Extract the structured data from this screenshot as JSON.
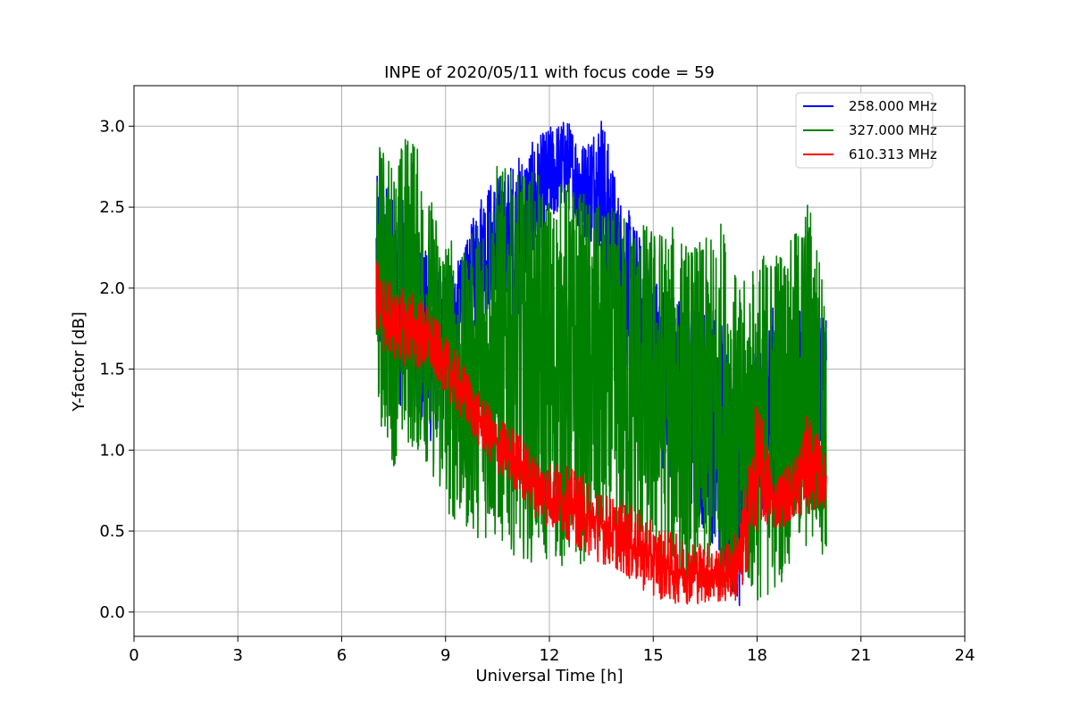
{
  "chart_data": {
    "type": "line",
    "title": "INPE of 2020/05/11 with focus code = 59",
    "xlabel": "Universal Time [h]",
    "ylabel": "Y-factor [dB]",
    "xlim": [
      0,
      24
    ],
    "ylim": [
      -0.15,
      3.25
    ],
    "xticks": [
      0,
      3,
      6,
      9,
      12,
      15,
      18,
      21,
      24
    ],
    "xtick_labels": [
      "0",
      "3",
      "6",
      "9",
      "12",
      "15",
      "18",
      "21",
      "24"
    ],
    "yticks": [
      0.0,
      0.5,
      1.0,
      1.5,
      2.0,
      2.5,
      3.0
    ],
    "ytick_labels": [
      "0.0",
      "0.5",
      "1.0",
      "1.5",
      "2.0",
      "2.5",
      "3.0"
    ],
    "grid": true,
    "legend_position": "top-right",
    "series": [
      {
        "name": "258.000 MHz",
        "color": "#0000ff",
        "x": [
          7.0,
          7.5,
          8.0,
          8.5,
          9.0,
          9.5,
          10.0,
          10.5,
          11.0,
          11.5,
          12.0,
          12.5,
          13.0,
          13.5,
          14.0,
          14.5,
          15.0,
          15.5,
          16.0,
          16.5,
          17.0,
          17.5,
          18.0,
          18.5,
          19.0,
          19.5,
          20.0
        ],
        "y_low": [
          1.5,
          1.3,
          1.2,
          1.0,
          1.2,
          1.6,
          1.8,
          1.9,
          1.7,
          2.1,
          2.4,
          2.5,
          2.3,
          2.2,
          1.7,
          1.3,
          1.0,
          0.8,
          0.6,
          0.5,
          0.3,
          0.0,
          0.6,
          0.6,
          0.8,
          0.9,
          1.1
        ],
        "y_high": [
          2.7,
          2.6,
          2.5,
          2.2,
          2.1,
          2.2,
          2.6,
          2.7,
          2.8,
          2.9,
          3.0,
          3.05,
          2.9,
          3.1,
          2.6,
          2.4,
          2.1,
          2.0,
          1.9,
          1.9,
          1.9,
          1.2,
          1.7,
          1.9,
          1.9,
          1.9,
          1.8
        ]
      },
      {
        "name": "327.000 MHz",
        "color": "#008000",
        "x": [
          7.0,
          7.5,
          8.0,
          8.5,
          9.0,
          9.5,
          10.0,
          10.5,
          11.0,
          11.5,
          12.0,
          12.5,
          13.0,
          13.5,
          14.0,
          14.5,
          15.0,
          15.5,
          16.0,
          16.5,
          17.0,
          17.5,
          18.0,
          18.5,
          19.0,
          19.5,
          20.0
        ],
        "y_low": [
          1.2,
          0.9,
          1.0,
          0.9,
          0.6,
          0.5,
          0.45,
          0.4,
          0.35,
          0.3,
          0.3,
          0.25,
          0.3,
          0.3,
          0.3,
          0.3,
          0.3,
          0.25,
          0.2,
          0.2,
          0.15,
          0.1,
          0.05,
          0.1,
          0.3,
          0.35,
          0.35
        ],
        "y_high": [
          2.95,
          2.8,
          3.05,
          2.6,
          2.4,
          2.2,
          2.5,
          2.8,
          2.7,
          2.75,
          2.6,
          2.7,
          2.6,
          2.5,
          2.5,
          2.45,
          2.4,
          2.4,
          2.3,
          2.3,
          2.45,
          2.0,
          2.2,
          2.3,
          2.3,
          2.6,
          2.0
        ]
      },
      {
        "name": "610.313 MHz",
        "color": "#ff0000",
        "x": [
          7.0,
          7.5,
          8.0,
          8.5,
          9.0,
          9.5,
          10.0,
          10.5,
          11.0,
          11.5,
          12.0,
          12.5,
          13.0,
          13.5,
          14.0,
          14.5,
          15.0,
          15.5,
          16.0,
          16.5,
          17.0,
          17.5,
          18.0,
          18.5,
          19.0,
          19.5,
          20.0
        ],
        "y_low": [
          1.6,
          1.55,
          1.5,
          1.45,
          1.35,
          1.15,
          1.0,
          0.85,
          0.75,
          0.6,
          0.5,
          0.45,
          0.35,
          0.3,
          0.25,
          0.15,
          0.1,
          0.05,
          0.05,
          0.05,
          0.05,
          0.05,
          0.5,
          0.5,
          0.55,
          0.6,
          0.65
        ],
        "y_high": [
          2.2,
          2.0,
          2.0,
          1.9,
          1.7,
          1.55,
          1.35,
          1.2,
          1.15,
          1.0,
          0.95,
          0.9,
          0.85,
          0.75,
          0.7,
          0.65,
          0.55,
          0.5,
          0.45,
          0.45,
          0.4,
          0.55,
          1.35,
          0.85,
          0.95,
          1.25,
          0.95
        ]
      }
    ]
  }
}
